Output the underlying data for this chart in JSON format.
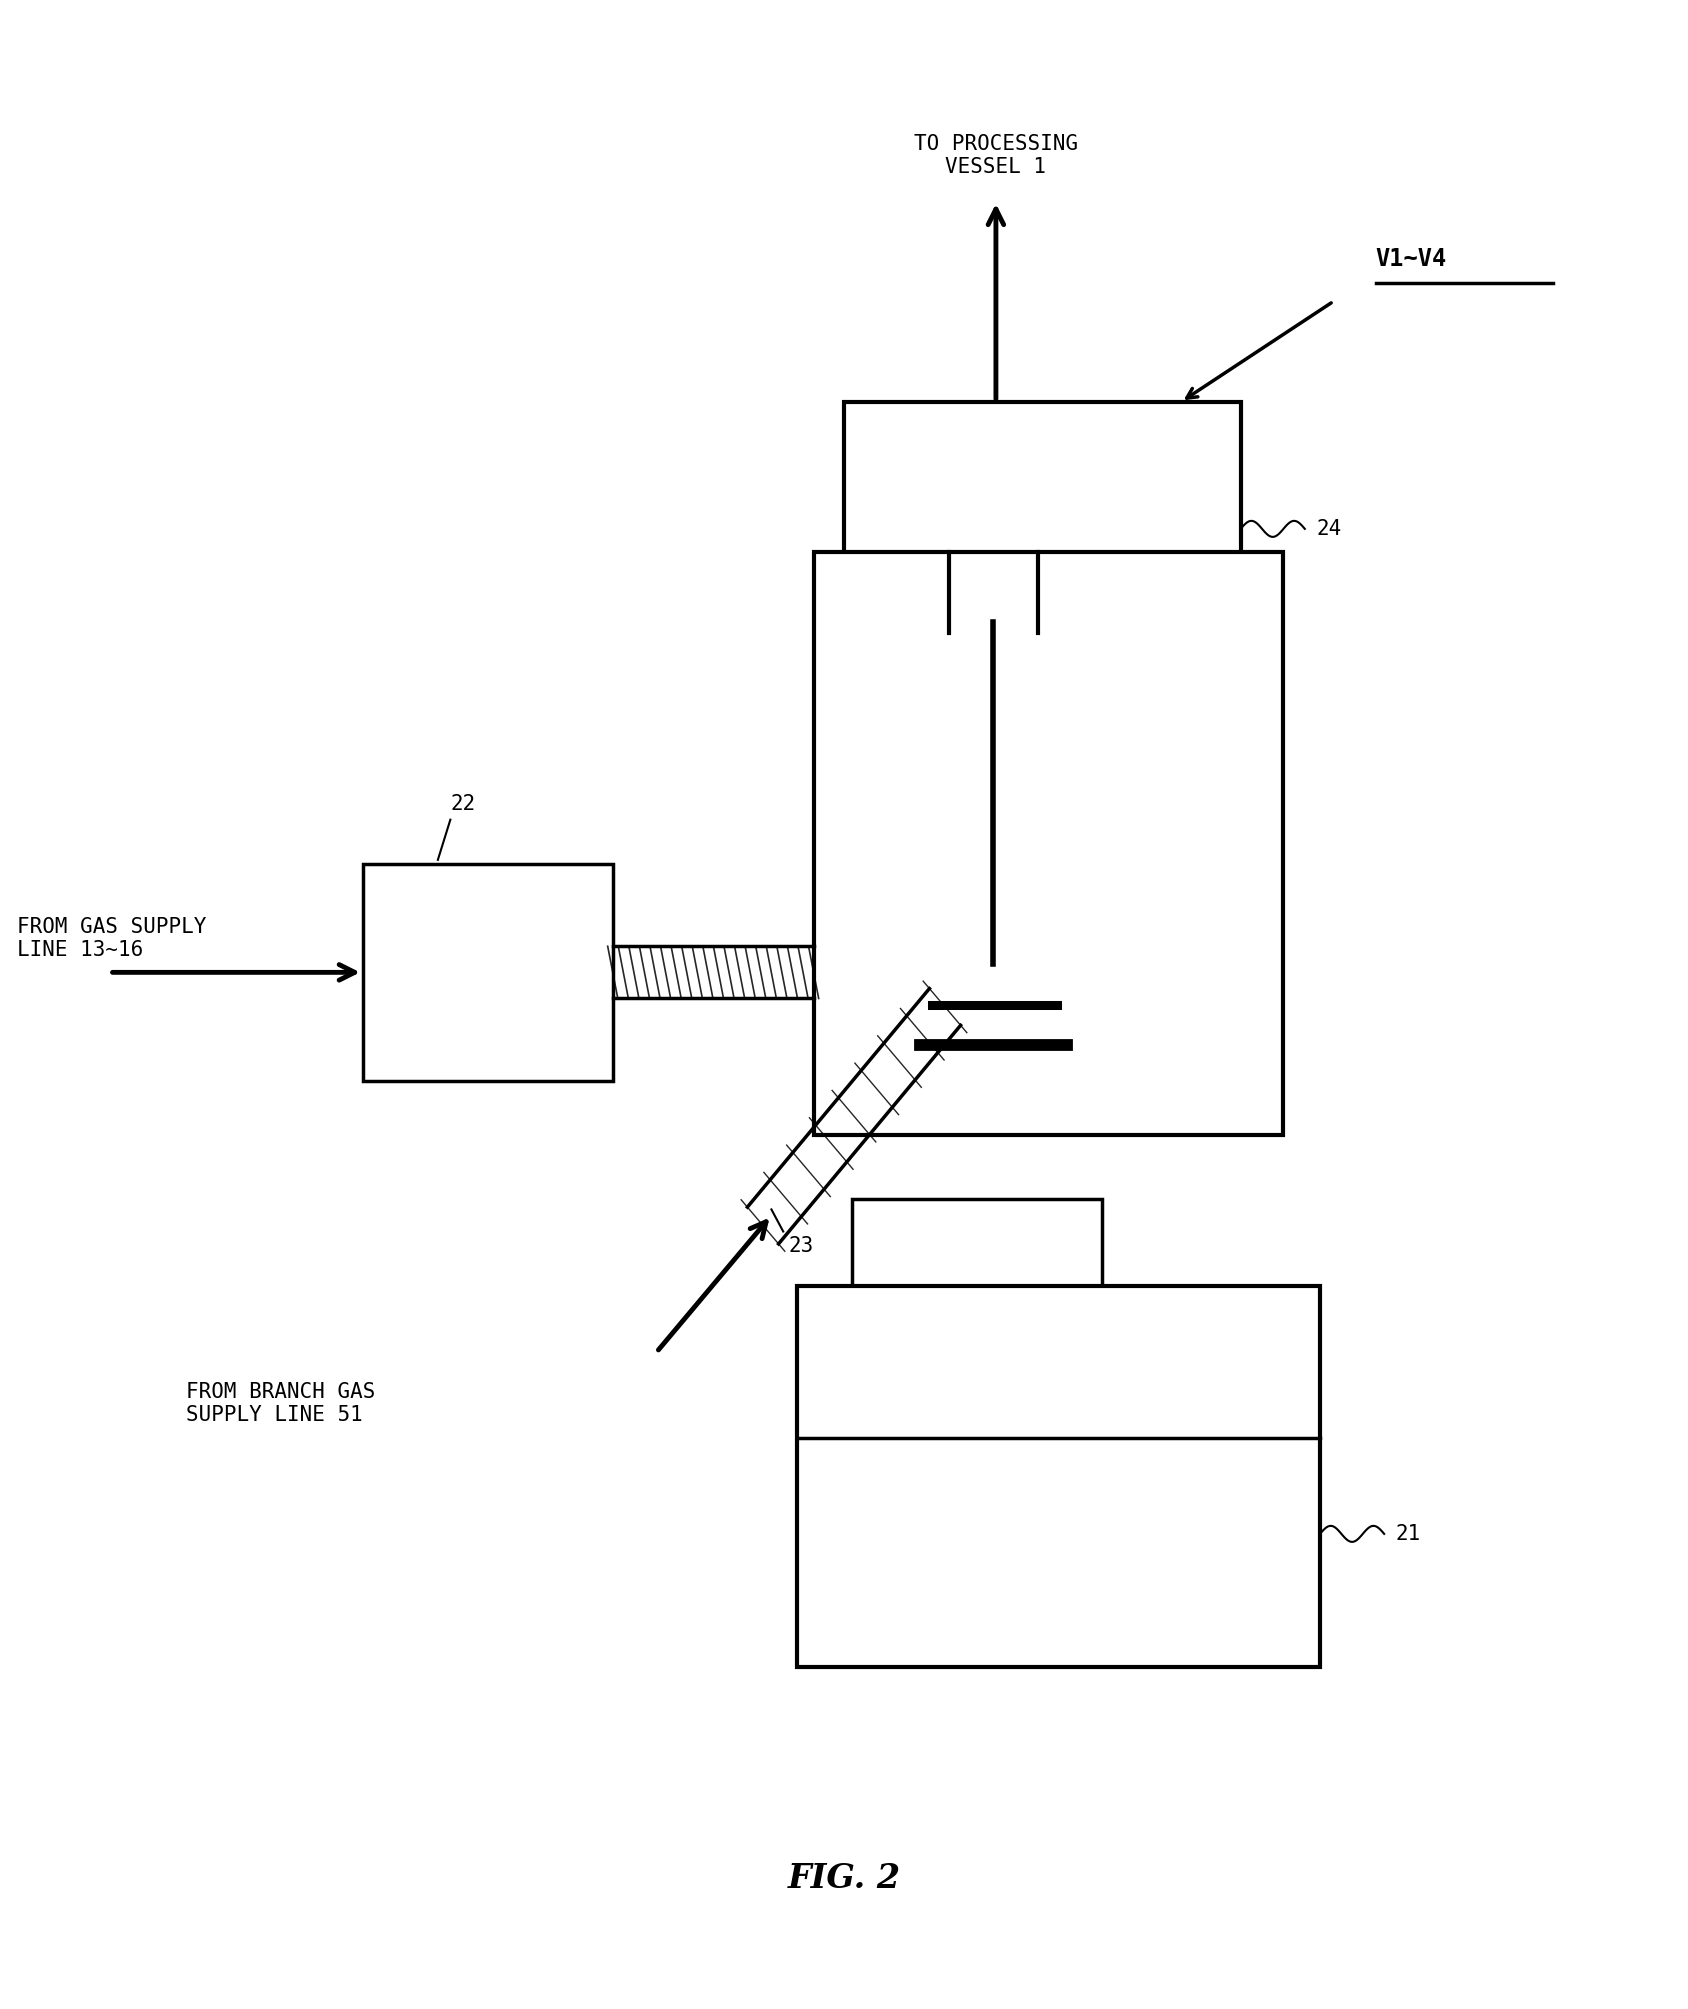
{
  "fig_label": "FIG. 2",
  "background_color": "#ffffff",
  "line_color": "#000000",
  "figsize": [
    16.88,
    20.09
  ],
  "dpi": 100,
  "labels": {
    "to_processing": "TO PROCESSING\nVESSEL 1",
    "from_gas": "FROM GAS SUPPLY\nLINE 13~16",
    "from_branch": "FROM BRANCH GAS\nSUPPLY LINE 51",
    "v1v4": "V1~V4",
    "num_24": "24",
    "num_22": "22",
    "num_23": "23",
    "num_21": "21",
    "fig": "FIG. 2"
  }
}
